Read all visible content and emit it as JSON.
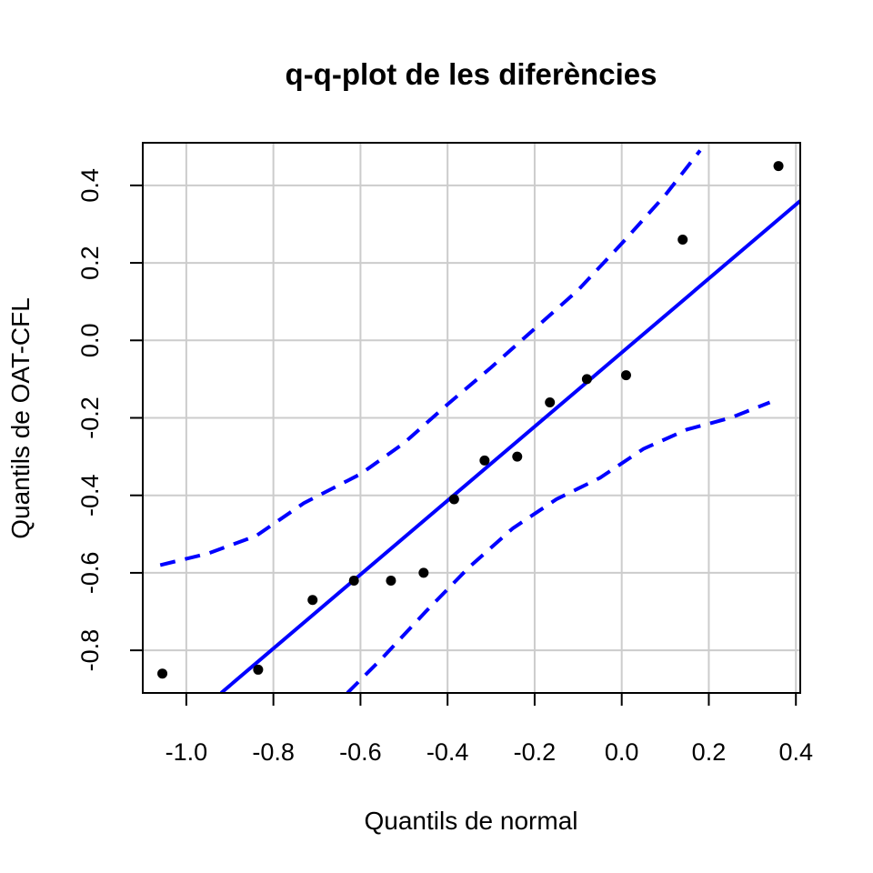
{
  "chart_data": {
    "type": "scatter",
    "title": "q-q-plot de les diferències",
    "xlabel": "Quantils de normal",
    "ylabel": "Quantils de OAT-CFL",
    "xlim": [
      -1.1,
      0.41
    ],
    "ylim": [
      -0.91,
      0.51
    ],
    "x_ticks": [
      -1.0,
      -0.8,
      -0.6,
      -0.4,
      -0.2,
      0.0,
      0.2,
      0.4
    ],
    "x_tick_labels": [
      "-1.0",
      "-0.8",
      "-0.6",
      "-0.4",
      "-0.2",
      "0.0",
      "0.2",
      "0.4"
    ],
    "y_ticks": [
      -0.8,
      -0.6,
      -0.4,
      -0.2,
      0.0,
      0.2,
      0.4
    ],
    "y_tick_labels": [
      "-0.8",
      "-0.6",
      "-0.4",
      "-0.2",
      "0.0",
      "0.2",
      "0.4"
    ],
    "grid": true,
    "points": {
      "x": [
        -1.055,
        -0.835,
        -0.71,
        -0.615,
        -0.53,
        -0.455,
        -0.385,
        -0.315,
        -0.24,
        -0.165,
        -0.08,
        0.01,
        0.14,
        0.36
      ],
      "y": [
        -0.86,
        -0.85,
        -0.67,
        -0.62,
        -0.62,
        -0.6,
        -0.41,
        -0.31,
        -0.3,
        -0.16,
        -0.1,
        -0.09,
        0.26,
        0.45
      ]
    },
    "reference_line": {
      "x": [
        -0.92,
        0.41
      ],
      "y": [
        -0.91,
        0.36
      ]
    },
    "confidence_band": {
      "upper": {
        "x": [
          -1.06,
          -0.95,
          -0.84,
          -0.73,
          -0.6,
          -0.5,
          -0.4,
          -0.3,
          -0.2,
          -0.1,
          0.0,
          0.1,
          0.18
        ],
        "y": [
          -0.58,
          -0.55,
          -0.505,
          -0.42,
          -0.345,
          -0.265,
          -0.165,
          -0.07,
          0.03,
          0.13,
          0.25,
          0.375,
          0.49
        ]
      },
      "lower": {
        "x": [
          -0.63,
          -0.55,
          -0.45,
          -0.35,
          -0.25,
          -0.15,
          -0.05,
          0.05,
          0.15,
          0.25,
          0.34
        ],
        "y": [
          -0.91,
          -0.82,
          -0.7,
          -0.585,
          -0.485,
          -0.41,
          -0.355,
          -0.28,
          -0.23,
          -0.2,
          -0.16
        ]
      }
    },
    "colors": {
      "points": "#000000",
      "line": "#0000ff",
      "grid": "#cccccc",
      "axis": "#000000"
    }
  }
}
